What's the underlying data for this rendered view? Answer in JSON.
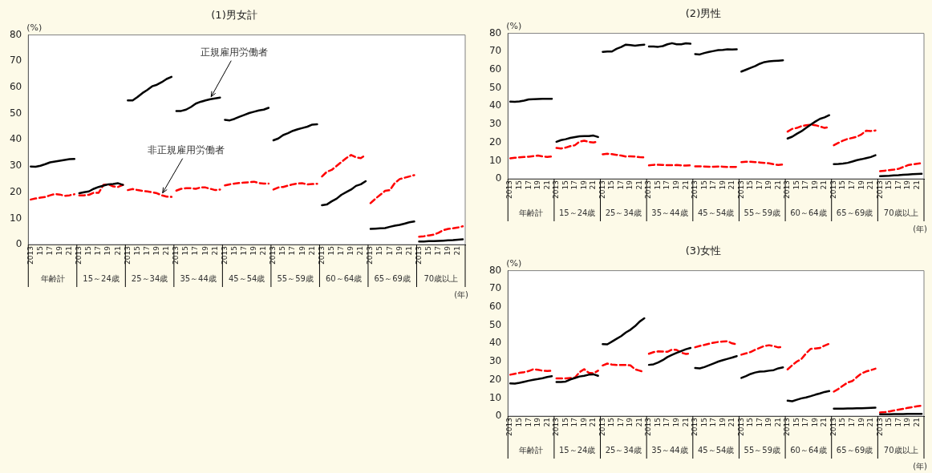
{
  "chart_data": [
    {
      "type": "line",
      "title": "(1)男女計",
      "ylabel": "(%)",
      "xlabel": "(年)",
      "ylim": [
        0,
        80
      ],
      "yticks": [
        0,
        10,
        20,
        30,
        40,
        50,
        60,
        70,
        80
      ],
      "grid": false,
      "legend": false,
      "marker": "none",
      "categories": [
        "2013",
        null,
        "15",
        null,
        "17",
        null,
        "19",
        null,
        "21",
        null,
        "2013",
        null,
        "15",
        null,
        "17",
        null,
        "19",
        null,
        "21",
        null,
        "2013",
        null,
        "15",
        null,
        "17",
        null,
        "19",
        null,
        "21",
        null,
        "2013",
        null,
        "15",
        null,
        "17",
        null,
        "19",
        null,
        "21",
        null,
        "2013",
        null,
        "15",
        null,
        "17",
        null,
        "19",
        null,
        "21",
        null,
        "2013",
        null,
        "15",
        null,
        "17",
        null,
        "19",
        null,
        "21",
        null,
        "2013",
        null,
        "15",
        null,
        "17",
        null,
        "19",
        null,
        "21",
        null,
        "2013",
        null,
        "15",
        null,
        "17",
        null,
        "19",
        null,
        "21",
        null,
        "2013",
        null,
        "15",
        null,
        "17",
        null,
        "19",
        null,
        "21",
        null
      ],
      "annotations": [
        "年齢計",
        "15～24歳",
        "25～34歳",
        "35～44歳",
        "45～54歳",
        "55～59歳",
        "60～64歳",
        "65～69歳",
        "70歳以上"
      ],
      "series": [
        {
          "name": "正規雇用労働者",
          "color": "#000000",
          "line_style": "solid",
          "values": [
            29.8,
            29.7,
            30.1,
            30.7,
            31.4,
            31.7,
            32.0,
            32.3,
            32.6,
            32.7,
            19.6,
            20.0,
            20.3,
            21.3,
            22.0,
            22.5,
            23.0,
            23.1,
            23.4,
            22.8,
            55.0,
            55.0,
            56.3,
            57.8,
            59.0,
            60.4,
            61.0,
            62.0,
            63.2,
            64.0,
            51.0,
            51.0,
            51.5,
            52.5,
            53.8,
            54.5,
            55.0,
            55.5,
            55.8,
            56.1,
            47.6,
            47.4,
            48.0,
            48.8,
            49.5,
            50.2,
            50.7,
            51.2,
            51.5,
            52.2,
            39.8,
            40.5,
            41.8,
            42.5,
            43.4,
            44.0,
            44.5,
            45.0,
            45.8,
            45.9,
            15.0,
            15.3,
            16.5,
            17.5,
            19.0,
            20.0,
            21.0,
            22.4,
            23.0,
            24.2,
            6.0,
            6.1,
            6.2,
            6.3,
            6.8,
            7.2,
            7.5,
            8.0,
            8.5,
            8.8,
            1.2,
            1.2,
            1.3,
            1.3,
            1.4,
            1.5,
            1.6,
            1.7,
            1.9,
            2.0
          ]
        },
        {
          "name": "非正規雇用労働者",
          "color": "#ff0000",
          "line_style": "dashed",
          "values": [
            17.2,
            17.6,
            17.9,
            18.2,
            18.8,
            19.3,
            19.1,
            18.6,
            18.8,
            19.2,
            18.8,
            18.8,
            19.0,
            19.8,
            19.8,
            22.8,
            23.0,
            22.2,
            22.0,
            22.8,
            20.8,
            21.2,
            20.8,
            20.5,
            20.3,
            20.0,
            19.6,
            18.8,
            18.3,
            18.2,
            20.6,
            21.3,
            21.5,
            21.5,
            21.3,
            21.8,
            21.8,
            21.3,
            20.8,
            21.0,
            22.6,
            23.0,
            23.3,
            23.5,
            23.7,
            23.8,
            24.0,
            23.5,
            23.3,
            23.3,
            21.0,
            21.8,
            22.0,
            22.5,
            23.0,
            23.3,
            23.4,
            23.0,
            23.1,
            23.2,
            26.0,
            27.8,
            28.5,
            30.0,
            31.5,
            33.0,
            34.2,
            33.3,
            33.0,
            34.2,
            15.8,
            17.5,
            19.0,
            20.5,
            20.8,
            23.5,
            25.0,
            25.5,
            26.0,
            26.5,
            3.0,
            3.2,
            3.5,
            3.8,
            4.5,
            5.5,
            6.0,
            6.2,
            6.5,
            7.0
          ]
        }
      ]
    },
    {
      "type": "line",
      "title": "(2)男性",
      "ylabel": "(%)",
      "xlabel": "(年)",
      "ylim": [
        0,
        80
      ],
      "yticks": [
        0,
        10,
        20,
        30,
        40,
        50,
        60,
        70,
        80
      ],
      "grid": false,
      "legend": false,
      "marker": "none",
      "categories": [
        "2013",
        null,
        "15",
        null,
        "17",
        null,
        "19",
        null,
        "21",
        null,
        "2013",
        null,
        "15",
        null,
        "17",
        null,
        "19",
        null,
        "21",
        null,
        "2013",
        null,
        "15",
        null,
        "17",
        null,
        "19",
        null,
        "21",
        null,
        "2013",
        null,
        "15",
        null,
        "17",
        null,
        "19",
        null,
        "21",
        null,
        "2013",
        null,
        "15",
        null,
        "17",
        null,
        "19",
        null,
        "21",
        null,
        "2013",
        null,
        "15",
        null,
        "17",
        null,
        "19",
        null,
        "21",
        null,
        "2013",
        null,
        "15",
        null,
        "17",
        null,
        "19",
        null,
        "21",
        null,
        "2013",
        null,
        "15",
        null,
        "17",
        null,
        "19",
        null,
        "21",
        null,
        "2013",
        null,
        "15",
        null,
        "17",
        null,
        "19",
        null,
        "21",
        null
      ],
      "annotations": [
        "年齢計",
        "15～24歳",
        "25～34歳",
        "35～44歳",
        "45～54歳",
        "55～59歳",
        "60～64歳",
        "65～69歳",
        "70歳以上"
      ],
      "series": [
        {
          "color": "#000000",
          "line_style": "solid",
          "values": [
            42.5,
            42.4,
            42.6,
            43.0,
            43.7,
            43.8,
            43.9,
            44.0,
            44.0,
            44.0,
            20.4,
            21.3,
            21.8,
            22.5,
            23.0,
            23.4,
            23.5,
            23.5,
            23.8,
            23.0,
            69.8,
            70.0,
            70.0,
            71.5,
            72.5,
            73.8,
            73.5,
            73.2,
            73.5,
            73.8,
            72.8,
            72.8,
            72.6,
            73.0,
            74.0,
            74.6,
            74.0,
            74.0,
            74.5,
            74.3,
            68.6,
            68.4,
            69.2,
            69.8,
            70.3,
            70.8,
            70.9,
            71.2,
            71.1,
            71.2,
            59.0,
            60.0,
            61.0,
            62.0,
            63.3,
            64.2,
            64.6,
            64.8,
            65.0,
            65.2,
            22.2,
            23.2,
            24.8,
            26.2,
            28.0,
            29.8,
            31.5,
            33.0,
            33.8,
            35.0,
            8.1,
            8.2,
            8.4,
            8.8,
            9.5,
            10.3,
            10.8,
            11.4,
            12.0,
            13.0,
            1.5,
            1.6,
            1.7,
            1.9,
            2.0,
            2.2,
            2.4,
            2.6,
            2.7,
            2.8
          ]
        },
        {
          "color": "#ff0000",
          "line_style": "dashed",
          "values": [
            11.3,
            11.6,
            11.8,
            12.0,
            12.2,
            12.5,
            12.8,
            12.3,
            12.1,
            12.3,
            17.0,
            16.7,
            17.2,
            18.0,
            18.5,
            20.5,
            21.0,
            20.3,
            20.0,
            20.6,
            13.5,
            13.8,
            13.6,
            13.2,
            12.8,
            12.3,
            12.4,
            12.2,
            11.9,
            11.8,
            7.4,
            7.7,
            7.8,
            7.7,
            7.5,
            7.5,
            7.6,
            7.4,
            7.3,
            7.4,
            6.9,
            6.9,
            6.8,
            6.7,
            6.7,
            6.8,
            6.7,
            6.5,
            6.5,
            6.6,
            9.2,
            9.4,
            9.4,
            9.2,
            9.0,
            8.8,
            8.5,
            8.0,
            7.6,
            7.9,
            26.0,
            27.5,
            28.0,
            29.0,
            29.5,
            29.8,
            29.5,
            28.8,
            28.0,
            28.5,
            18.5,
            19.8,
            21.0,
            22.0,
            22.5,
            23.2,
            24.5,
            26.5,
            26.3,
            26.6,
            4.2,
            4.5,
            4.8,
            5.1,
            5.5,
            6.5,
            7.5,
            8.0,
            8.3,
            8.6
          ]
        }
      ]
    },
    {
      "type": "line",
      "title": "(3)女性",
      "ylabel": "(%)",
      "xlabel": "(年)",
      "ylim": [
        0,
        80
      ],
      "yticks": [
        0,
        10,
        20,
        30,
        40,
        50,
        60,
        70,
        80
      ],
      "grid": false,
      "legend": false,
      "marker": "none",
      "categories": [
        "2013",
        null,
        "15",
        null,
        "17",
        null,
        "19",
        null,
        "21",
        null,
        "2013",
        null,
        "15",
        null,
        "17",
        null,
        "19",
        null,
        "21",
        null,
        "2013",
        null,
        "15",
        null,
        "17",
        null,
        "19",
        null,
        "21",
        null,
        "2013",
        null,
        "15",
        null,
        "17",
        null,
        "19",
        null,
        "21",
        null,
        "2013",
        null,
        "15",
        null,
        "17",
        null,
        "19",
        null,
        "21",
        null,
        "2013",
        null,
        "15",
        null,
        "17",
        null,
        "19",
        null,
        "21",
        null,
        "2013",
        null,
        "15",
        null,
        "17",
        null,
        "19",
        null,
        "21",
        null,
        "2013",
        null,
        "15",
        null,
        "17",
        null,
        "19",
        null,
        "21",
        null,
        "2013",
        null,
        "15",
        null,
        "17",
        null,
        "19",
        null,
        "21",
        null
      ],
      "annotations": [
        "年齢計",
        "15～24歳",
        "25～34歳",
        "35～44歳",
        "45～54歳",
        "55～59歳",
        "60～64歳",
        "65～69歳",
        "70歳以上"
      ],
      "series": [
        {
          "color": "#000000",
          "line_style": "solid",
          "values": [
            18.0,
            17.9,
            18.3,
            18.9,
            19.5,
            20.0,
            20.4,
            20.9,
            21.5,
            22.0,
            18.8,
            18.8,
            19.0,
            20.2,
            21.0,
            21.8,
            22.2,
            22.8,
            23.0,
            22.2,
            39.6,
            39.5,
            41.0,
            42.5,
            44.0,
            46.0,
            47.5,
            49.5,
            52.0,
            53.8,
            28.2,
            28.5,
            29.5,
            30.8,
            32.5,
            33.7,
            34.8,
            35.8,
            36.8,
            37.5,
            26.5,
            26.3,
            27.0,
            28.0,
            29.0,
            30.0,
            30.8,
            31.5,
            32.2,
            33.0,
            21.0,
            22.0,
            23.2,
            24.0,
            24.5,
            24.6,
            25.0,
            25.3,
            26.3,
            26.8,
            8.5,
            8.2,
            9.0,
            9.8,
            10.3,
            11.0,
            11.8,
            12.5,
            13.3,
            13.8,
            4.1,
            4.1,
            4.1,
            4.2,
            4.2,
            4.3,
            4.3,
            4.5,
            4.6,
            4.7,
            1.0,
            1.0,
            1.0,
            1.1,
            1.1,
            1.1,
            1.2,
            1.2,
            1.2,
            1.2
          ]
        },
        {
          "color": "#ff0000",
          "line_style": "dashed",
          "values": [
            22.8,
            23.3,
            23.8,
            24.2,
            24.8,
            25.8,
            25.5,
            25.0,
            24.8,
            25.0,
            20.8,
            20.8,
            20.8,
            21.0,
            21.2,
            24.2,
            25.8,
            23.8,
            23.6,
            25.0,
            27.9,
            28.9,
            28.4,
            28.1,
            28.1,
            28.2,
            27.9,
            25.8,
            25.0,
            24.2,
            34.3,
            35.2,
            35.6,
            35.5,
            35.4,
            36.6,
            36.4,
            34.9,
            34.2,
            34.5,
            37.9,
            38.6,
            39.2,
            39.8,
            40.4,
            40.8,
            41.0,
            41.2,
            40.0,
            39.5,
            33.8,
            34.5,
            35.3,
            36.5,
            37.6,
            38.6,
            39.0,
            38.5,
            37.8,
            38.2,
            25.7,
            28.0,
            30.0,
            31.5,
            34.5,
            37.0,
            37.2,
            37.5,
            38.8,
            39.8,
            13.5,
            15.0,
            16.8,
            18.5,
            19.3,
            21.5,
            23.5,
            24.6,
            25.3,
            26.1,
            2.0,
            2.2,
            2.6,
            3.1,
            3.6,
            4.0,
            4.6,
            5.0,
            5.4,
            5.8
          ]
        }
      ]
    }
  ]
}
